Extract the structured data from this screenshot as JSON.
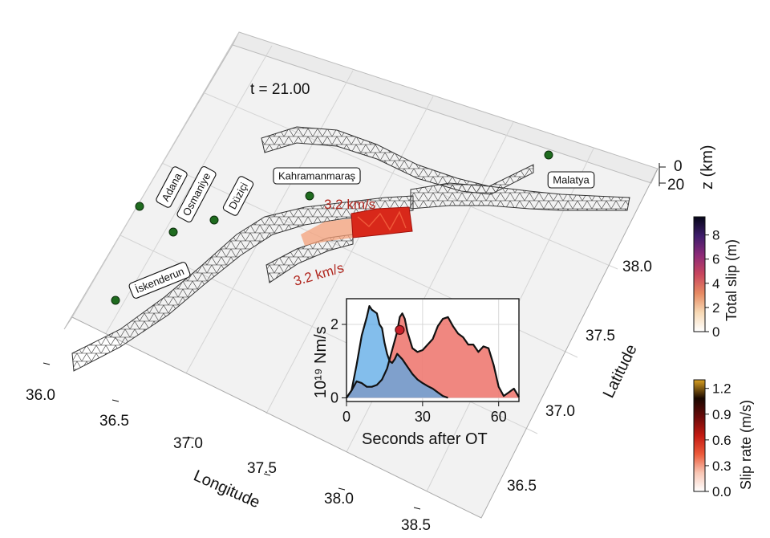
{
  "chart_data": [
    {
      "type": "map-3d",
      "time_label": "t = 21.00",
      "xlabel": "Longitude",
      "ylabel": "Latitude",
      "zlabel": "z (km)",
      "x_ticks": [
        "36.0",
        "36.5",
        "37.0",
        "37.5",
        "38.0",
        "38.5"
      ],
      "y_ticks": [
        "36.5",
        "37.0",
        "37.5",
        "38.0"
      ],
      "z_ticks": [
        "0",
        "20"
      ],
      "cities": [
        {
          "name": "Adana"
        },
        {
          "name": "Osmaniye"
        },
        {
          "name": "Düziçi"
        },
        {
          "name": "Kahramanmaraş"
        },
        {
          "name": "İskenderun"
        },
        {
          "name": "Malatya"
        }
      ],
      "annotations": [
        "3.2 km/s",
        "3.2 km/s"
      ],
      "colors": {
        "city_marker": "#1f6b1f",
        "annotation": "#b0261e",
        "mesh": "#3a3a3a"
      }
    },
    {
      "type": "area",
      "xlabel": "Seconds after OT",
      "ylabel": "10¹⁹ Nm/s",
      "x_ticks": [
        "0",
        "30",
        "60"
      ],
      "y_ticks": [
        "0",
        "2"
      ],
      "xlim": [
        0,
        68
      ],
      "ylim": [
        -0.1,
        2.7
      ],
      "marker": {
        "x": 21,
        "y": 1.85
      },
      "series": [
        {
          "color": "#5aa8e6",
          "x": [
            0,
            2,
            4,
            6,
            8,
            9,
            10,
            11,
            12,
            13,
            14,
            15,
            16,
            17,
            18,
            19,
            20,
            22,
            24,
            26,
            28,
            30,
            32,
            34,
            36,
            38,
            40
          ],
          "y": [
            0,
            0.2,
            0.9,
            1.7,
            2.2,
            2.5,
            2.4,
            2.35,
            2.3,
            2.0,
            1.9,
            1.5,
            1.2,
            1.0,
            0.95,
            1.05,
            1.2,
            1.05,
            0.85,
            0.65,
            0.5,
            0.4,
            0.32,
            0.25,
            0.15,
            0.05,
            0
          ]
        },
        {
          "color": "#ee7a72",
          "x": [
            0,
            2,
            4,
            6,
            8,
            10,
            12,
            14,
            16,
            18,
            20,
            21,
            22,
            23,
            24,
            26,
            28,
            30,
            32,
            34,
            36,
            38,
            40,
            42,
            44,
            46,
            48,
            50,
            52,
            54,
            56,
            58,
            60,
            62,
            64,
            66,
            68
          ],
          "y": [
            0,
            0.2,
            0.45,
            0.4,
            0.3,
            0.3,
            0.35,
            0.5,
            0.8,
            1.3,
            1.8,
            2.2,
            2.3,
            2.15,
            1.8,
            1.35,
            1.25,
            1.3,
            1.45,
            1.6,
            1.95,
            2.15,
            2.2,
            1.95,
            1.75,
            1.65,
            1.45,
            1.45,
            1.25,
            1.4,
            1.35,
            0.9,
            0.3,
            0.05,
            0.15,
            0.25,
            0.02
          ]
        }
      ]
    },
    {
      "type": "colorbar",
      "label": "Total slip (m)",
      "ticks": [
        "8",
        "6",
        "4",
        "2",
        "0"
      ],
      "range": [
        0,
        9.5
      ],
      "colors": [
        "#ffffff",
        "#f7d9b5",
        "#e68a62",
        "#c9465e",
        "#8d2a78",
        "#3e1d6b",
        "#050518"
      ]
    },
    {
      "type": "colorbar",
      "label": "Slip rate (m/s)",
      "ticks": [
        "1.2",
        "0.9",
        "0.6",
        "0.3",
        "0.0"
      ],
      "range": [
        0,
        1.3
      ],
      "colors": [
        "#ffffff",
        "#f8c6b4",
        "#ec5a3a",
        "#c41a12",
        "#6a0a0a",
        "#1a0800",
        "#d9a020"
      ]
    }
  ]
}
